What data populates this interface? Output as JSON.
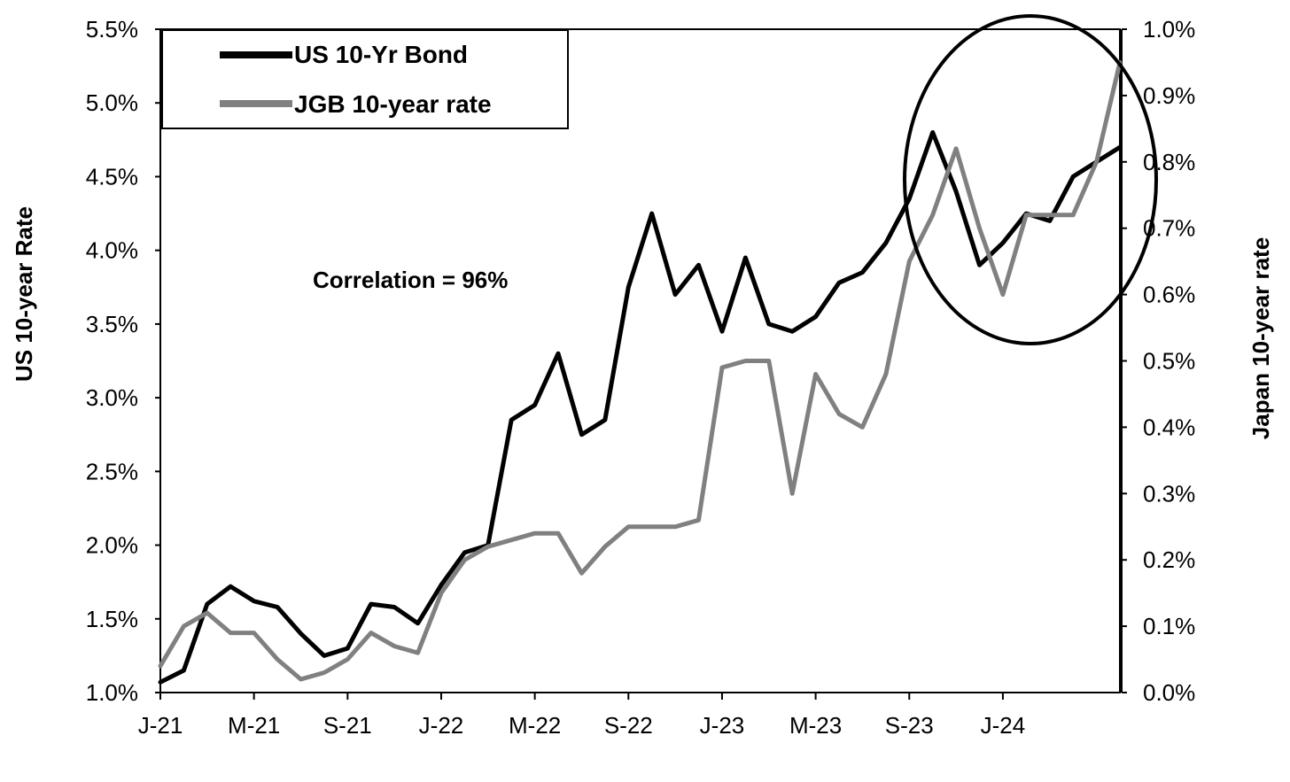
{
  "chart_data": {
    "type": "line",
    "left_axis": {
      "label": "US 10-year Rate",
      "ticks": [
        "1.0%",
        "1.5%",
        "2.0%",
        "2.5%",
        "3.0%",
        "3.5%",
        "4.0%",
        "4.5%",
        "5.0%",
        "5.5%"
      ],
      "ylim": [
        1.0,
        5.5
      ]
    },
    "right_axis": {
      "label": "Japan 10-year rate",
      "ticks": [
        "0.0%",
        "0.1%",
        "0.2%",
        "0.3%",
        "0.4%",
        "0.5%",
        "0.6%",
        "0.7%",
        "0.8%",
        "0.9%",
        "1.0%"
      ],
      "ylim": [
        0.0,
        1.0
      ]
    },
    "x_axis": {
      "ticks": [
        "J-21",
        "M-21",
        "S-21",
        "J-22",
        "M-22",
        "S-22",
        "J-23",
        "M-23",
        "S-23",
        "J-24"
      ],
      "tick_months": [
        "2021-01",
        "2021-05",
        "2021-09",
        "2022-01",
        "2022-05",
        "2022-09",
        "2023-01",
        "2023-05",
        "2023-09",
        "2024-01"
      ],
      "xlim": [
        "2021-01",
        "2024-06"
      ]
    },
    "legend": {
      "placement": "top-left",
      "entries": [
        {
          "label": "US 10-Yr Bond",
          "color": "#000000"
        },
        {
          "label": "JGB 10-year rate",
          "color": "#808080"
        }
      ]
    },
    "annotation": "Correlation = 96%",
    "highlight": {
      "shape": "ellipse",
      "around": [
        "2023-09",
        "2024-06"
      ]
    },
    "grid": false,
    "series": [
      {
        "name": "US 10-Yr Bond",
        "axis": "left",
        "color": "#000000",
        "x": [
          "2021-01",
          "2021-02",
          "2021-03",
          "2021-04",
          "2021-05",
          "2021-06",
          "2021-07",
          "2021-08",
          "2021-09",
          "2021-10",
          "2021-11",
          "2021-12",
          "2022-01",
          "2022-02",
          "2022-03",
          "2022-04",
          "2022-05",
          "2022-06",
          "2022-07",
          "2022-08",
          "2022-09",
          "2022-10",
          "2022-11",
          "2022-12",
          "2023-01",
          "2023-02",
          "2023-03",
          "2023-04",
          "2023-05",
          "2023-06",
          "2023-07",
          "2023-08",
          "2023-09",
          "2023-10",
          "2023-11",
          "2023-12",
          "2024-01",
          "2024-02",
          "2024-03",
          "2024-04",
          "2024-05",
          "2024-06"
        ],
        "values": [
          1.07,
          1.15,
          1.6,
          1.72,
          1.62,
          1.58,
          1.4,
          1.25,
          1.3,
          1.6,
          1.58,
          1.47,
          1.73,
          1.95,
          2.0,
          2.85,
          2.95,
          3.3,
          2.75,
          2.85,
          3.75,
          4.25,
          3.7,
          3.9,
          3.45,
          3.95,
          3.5,
          3.45,
          3.55,
          3.78,
          3.85,
          4.05,
          4.35,
          4.8,
          4.4,
          3.9,
          4.05,
          4.25,
          4.2,
          4.5,
          4.6,
          4.7
        ]
      },
      {
        "name": "JGB 10-year rate",
        "axis": "right",
        "color": "#808080",
        "x": [
          "2021-01",
          "2021-02",
          "2021-03",
          "2021-04",
          "2021-05",
          "2021-06",
          "2021-07",
          "2021-08",
          "2021-09",
          "2021-10",
          "2021-11",
          "2021-12",
          "2022-01",
          "2022-02",
          "2022-03",
          "2022-04",
          "2022-05",
          "2022-06",
          "2022-07",
          "2022-08",
          "2022-09",
          "2022-10",
          "2022-11",
          "2022-12",
          "2023-01",
          "2023-02",
          "2023-03",
          "2023-04",
          "2023-05",
          "2023-06",
          "2023-07",
          "2023-08",
          "2023-09",
          "2023-10",
          "2023-11",
          "2023-12",
          "2024-01",
          "2024-02",
          "2024-03",
          "2024-04",
          "2024-05",
          "2024-06"
        ],
        "values": [
          0.04,
          0.1,
          0.12,
          0.09,
          0.09,
          0.05,
          0.02,
          0.03,
          0.05,
          0.09,
          0.07,
          0.06,
          0.15,
          0.2,
          0.22,
          0.23,
          0.24,
          0.24,
          0.18,
          0.22,
          0.25,
          0.25,
          0.25,
          0.26,
          0.49,
          0.5,
          0.5,
          0.3,
          0.48,
          0.42,
          0.4,
          0.48,
          0.65,
          0.72,
          0.82,
          0.7,
          0.6,
          0.72,
          0.72,
          0.72,
          0.8,
          0.95
        ]
      }
    ]
  }
}
